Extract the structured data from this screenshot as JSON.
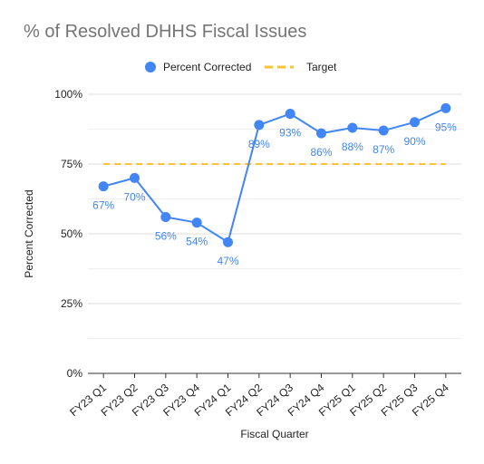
{
  "title": "% of Resolved DHHS Fiscal Issues",
  "colors": {
    "series": "#4285f4",
    "target": "#f4c43a",
    "grid": "#e6e6e6",
    "axis": "#333333",
    "title": "#757575"
  },
  "chart_data": {
    "type": "line",
    "title": "% of Resolved DHHS Fiscal Issues",
    "xlabel": "Fiscal Quarter",
    "ylabel": "Percent Corrected",
    "ylim": [
      0,
      100
    ],
    "yticks": [
      0,
      25,
      50,
      75,
      100
    ],
    "ytick_labels": [
      "0%",
      "25%",
      "50%",
      "75%",
      "100%"
    ],
    "grid": true,
    "legend_position": "top",
    "categories": [
      "FY23 Q1",
      "FY23 Q2",
      "FY23 Q3",
      "FY23 Q4",
      "FY24 Q1",
      "FY24 Q2",
      "FY24 Q3",
      "FY24 Q4",
      "FY25 Q1",
      "FY25 Q2",
      "FY25 Q3",
      "FY25 Q4"
    ],
    "series": [
      {
        "name": "Percent Corrected",
        "style": "line-markers",
        "color": "#4285f4",
        "values": [
          67,
          70,
          56,
          54,
          47,
          89,
          93,
          86,
          88,
          87,
          90,
          95
        ],
        "labels": [
          "67%",
          "70%",
          "56%",
          "54%",
          "47%",
          "89%",
          "93%",
          "86%",
          "88%",
          "87%",
          "90%",
          "95%"
        ]
      },
      {
        "name": "Target",
        "style": "dashed",
        "color": "#f4c43a",
        "values": [
          75,
          75,
          75,
          75,
          75,
          75,
          75,
          75,
          75,
          75,
          75,
          75
        ]
      }
    ]
  }
}
